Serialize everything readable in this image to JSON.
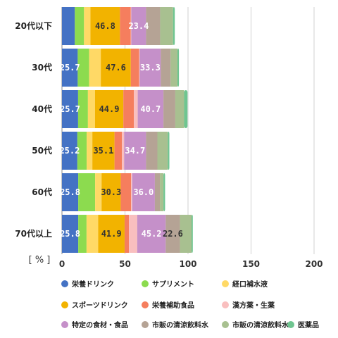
{
  "chart_data": {
    "type": "bar",
    "orientation": "horizontal",
    "stacked": true,
    "unit_label": "[ % ]",
    "xlim": [
      0,
      200
    ],
    "x_ticks": [
      0,
      50,
      100,
      150,
      200
    ],
    "grid": true,
    "legend_position": "bottom",
    "categories": [
      "20代以下",
      "30代",
      "40代",
      "50代",
      "60代",
      "70代以上"
    ],
    "series": [
      {
        "name": "栄養ドリンク",
        "color": "#4472C4",
        "values": [
          10.2,
          12.5,
          12.8,
          12.2,
          12.9,
          12.9
        ],
        "labels": [
          "",
          "25.7",
          "25.7",
          "25.2",
          "25.8",
          "25.8"
        ]
      },
      {
        "name": "サプリメント",
        "color": "#8CDB4F",
        "values": [
          7.3,
          9.1,
          7.8,
          7.4,
          13.4,
          6.6
        ],
        "labels": [
          "",
          "",
          "",
          "",
          "",
          ""
        ]
      },
      {
        "name": "経口補水液",
        "color": "#FFD966",
        "values": [
          5.1,
          9.2,
          5.6,
          4.5,
          5.1,
          9.2
        ],
        "labels": [
          "",
          "",
          "",
          "",
          "",
          ""
        ]
      },
      {
        "name": "スポーツドリンク",
        "color": "#F2B300",
        "values": [
          23.4,
          23.8,
          22.5,
          17.6,
          15.2,
          21.0
        ],
        "labels": [
          "46.8",
          "47.6",
          "44.9",
          "35.1",
          "30.3",
          "41.9"
        ]
      },
      {
        "name": "栄養補助食品",
        "color": "#F57E5E",
        "values": [
          8.6,
          6.6,
          8.4,
          5.8,
          8.2,
          3.4
        ],
        "labels": [
          "",
          "",
          "",
          "",
          "",
          ""
        ]
      },
      {
        "name": "漢方薬・生薬",
        "color": "#F9BFBF",
        "values": [
          0.4,
          0.5,
          3.0,
          1.8,
          0.9,
          6.6
        ],
        "labels": [
          "",
          "",
          "",
          "",
          "",
          ""
        ]
      },
      {
        "name": "特定の食材・食品",
        "color": "#C590C9",
        "values": [
          11.7,
          16.7,
          20.4,
          17.4,
          18.0,
          22.6
        ],
        "labels": [
          "23.4",
          "33.3",
          "40.7",
          "34.7",
          "36.0",
          "45.2"
        ]
      },
      {
        "name": "市販の清涼飲料水",
        "color": "#B5A395",
        "values": [
          11.2,
          7.8,
          9.4,
          9.0,
          4.0,
          11.3
        ],
        "labels": [
          "",
          "",
          "",
          "",
          "",
          "22.6"
        ]
      },
      {
        "name": "市販の清涼飲料水",
        "color": "#A8C090",
        "values": [
          10.2,
          5.4,
          7.0,
          8.2,
          2.8,
          9.2
        ],
        "labels": [
          "",
          "",
          "",
          "",
          "",
          ""
        ]
      },
      {
        "name": "医薬品",
        "color": "#6FC590",
        "values": [
          1.4,
          1.2,
          2.7,
          1.3,
          1.3,
          1.0
        ],
        "labels": [
          "",
          "",
          "",
          "",
          "",
          ""
        ]
      }
    ],
    "value_label_colors": {
      "light": "#ffffff",
      "dark": "#333333"
    }
  }
}
